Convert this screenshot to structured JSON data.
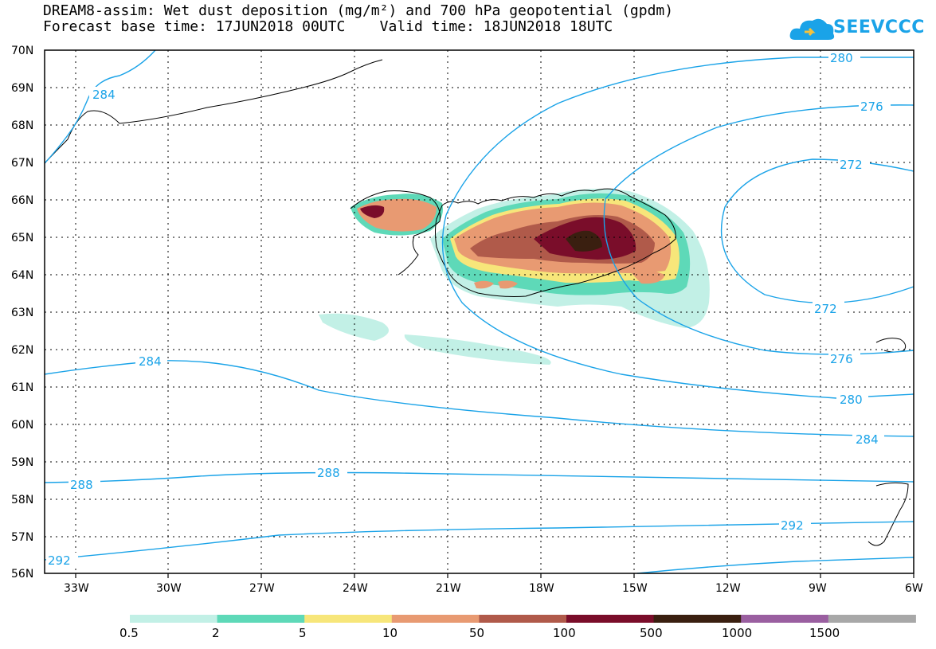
{
  "title": {
    "line1": "DREAM8-assim: Wet dust deposition (mg/m²) and 700 hPa geopotential (gpdm)",
    "line2": "Forecast base time: 17JUN2018 00UTC    Valid time: 18JUN2018 18UTC"
  },
  "logo": {
    "text": "SEEVCCC",
    "color": "#1aa3e8"
  },
  "axes": {
    "lat_labels": [
      "70N",
      "69N",
      "68N",
      "67N",
      "66N",
      "65N",
      "64N",
      "63N",
      "62N",
      "61N",
      "60N",
      "59N",
      "58N",
      "57N",
      "56N"
    ],
    "lon_labels": [
      "33W",
      "30W",
      "27W",
      "24W",
      "21W",
      "18W",
      "15W",
      "12W",
      "9W",
      "6W"
    ]
  },
  "isolines": {
    "color": "#1aa3e8",
    "labels": [
      "280",
      "276",
      "272",
      "284",
      "272",
      "276",
      "284",
      "280",
      "284",
      "288",
      "288",
      "292",
      "292"
    ]
  },
  "colorbar": {
    "colors": [
      "#c2f0e6",
      "#5ed9b8",
      "#f7e67a",
      "#e89a72",
      "#b05a4a",
      "#7a0d2a",
      "#3a1f10",
      "#9a5fa0",
      "#a8a8a8"
    ],
    "labels": [
      "0.5",
      "2",
      "5",
      "10",
      "50",
      "100",
      "500",
      "1000",
      "1500"
    ]
  }
}
